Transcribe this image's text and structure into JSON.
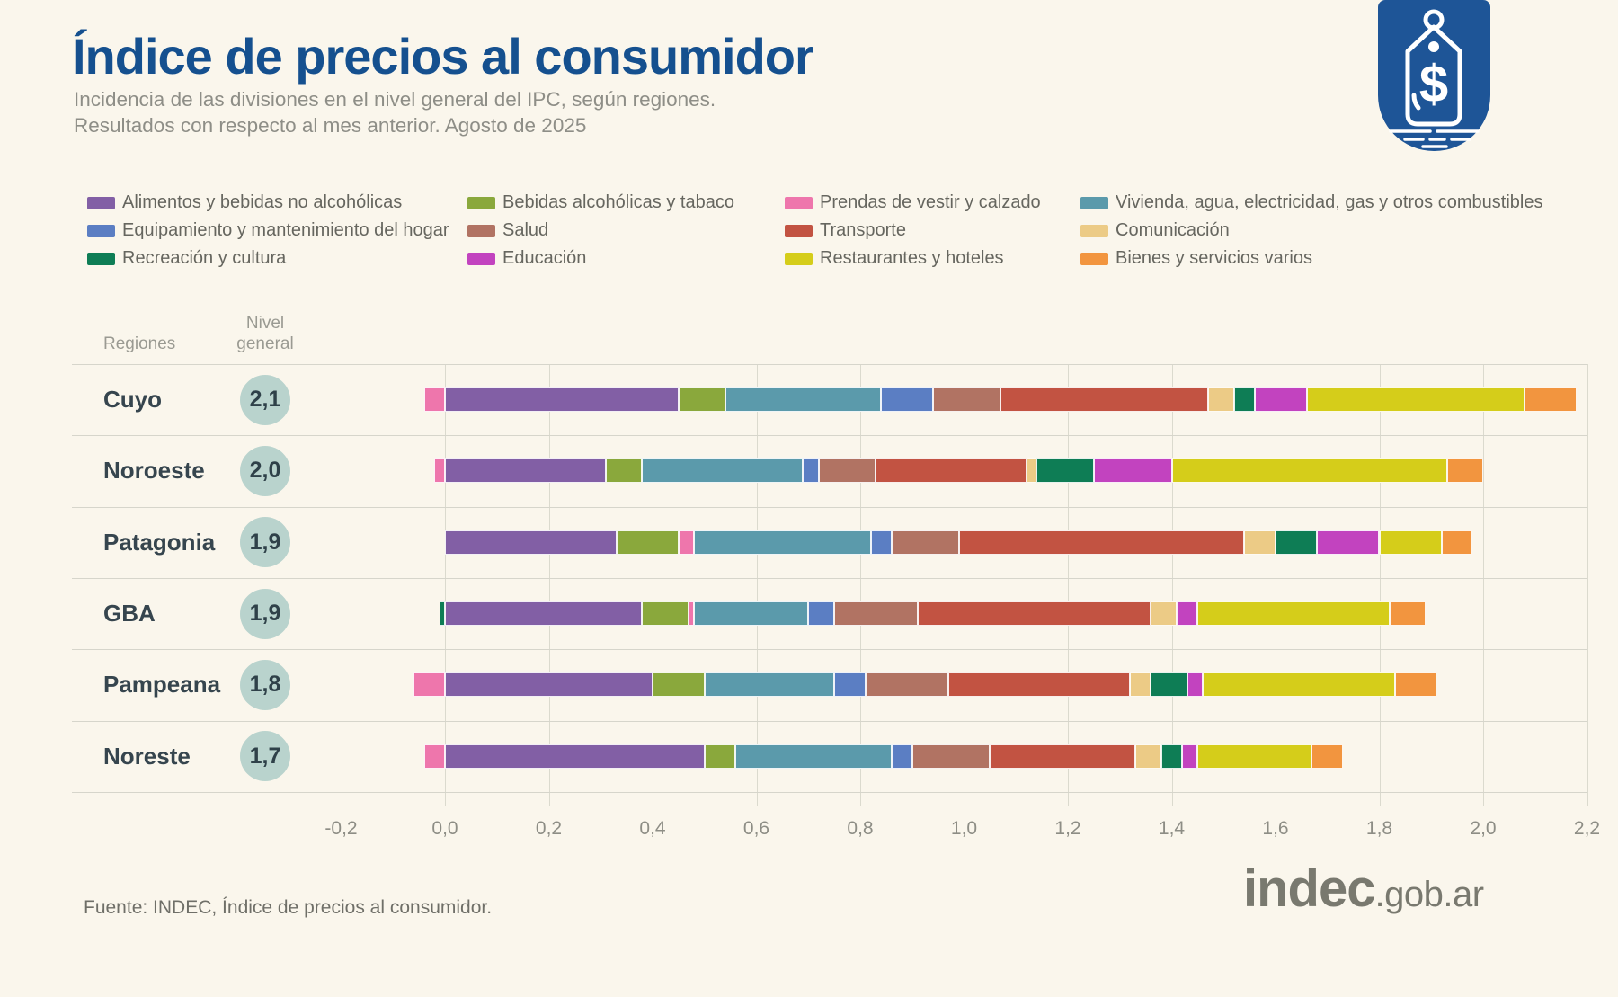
{
  "header": {
    "title": "Índice de precios al consumidor",
    "subtitle_line1": "Incidencia de las divisiones en el nivel general del IPC, según regiones.",
    "subtitle_line2": "Resultados con respecto al mes anterior. Agosto de 2025"
  },
  "brand": {
    "icon": "price-tag-icon",
    "badge_color": "#1e5597",
    "title_color": "#15508f"
  },
  "table_headers": {
    "regions": "Regiones",
    "level_line1": "Nivel",
    "level_line2": "general"
  },
  "chart_data": {
    "type": "bar",
    "subtype": "horizontal-stacked",
    "unit": "incidencia en puntos porcentuales",
    "xlim": [
      -0.2,
      2.2
    ],
    "tick_step": 0.2,
    "ticks": [
      "-0,2",
      "0,0",
      "0,2",
      "0,4",
      "0,6",
      "0,8",
      "1,0",
      "1,2",
      "1,4",
      "1,6",
      "1,8",
      "2,0",
      "2,2"
    ],
    "grid": true,
    "legend_position": "top",
    "categories": [
      {
        "name": "Alimentos y bebidas no alcohólicas",
        "color": "#825fa5"
      },
      {
        "name": "Bebidas alcohólicas y tabaco",
        "color": "#8aa83c"
      },
      {
        "name": "Prendas de vestir y calzado",
        "color": "#ee76ac"
      },
      {
        "name": "Vivienda, agua, electricidad, gas y otros combustibles",
        "color": "#5b9aab"
      },
      {
        "name": "Equipamiento y mantenimiento del hogar",
        "color": "#5b7ec3"
      },
      {
        "name": "Salud",
        "color": "#b17363"
      },
      {
        "name": "Transporte",
        "color": "#c25342"
      },
      {
        "name": "Comunicación",
        "color": "#eccb86"
      },
      {
        "name": "Recreación y cultura",
        "color": "#0e7d55"
      },
      {
        "name": "Educación",
        "color": "#c243bf"
      },
      {
        "name": "Restaurantes y hoteles",
        "color": "#d5cd1a"
      },
      {
        "name": "Bienes y servicios varios",
        "color": "#f2953f"
      }
    ],
    "rows": [
      {
        "region": "Cuyo",
        "nivel_general": "2,1",
        "values": [
          0.45,
          0.09,
          -0.04,
          0.3,
          0.1,
          0.13,
          0.4,
          0.05,
          0.04,
          0.1,
          0.42,
          0.1
        ]
      },
      {
        "region": "Noroeste",
        "nivel_general": "2,0",
        "values": [
          0.31,
          0.07,
          -0.02,
          0.31,
          0.03,
          0.11,
          0.29,
          0.02,
          0.11,
          0.15,
          0.53,
          0.07
        ]
      },
      {
        "region": "Patagonia",
        "nivel_general": "1,9",
        "values": [
          0.33,
          0.12,
          0.03,
          0.34,
          0.04,
          0.13,
          0.55,
          0.06,
          0.08,
          0.12,
          0.12,
          0.06
        ]
      },
      {
        "region": "GBA",
        "nivel_general": "1,9",
        "values": [
          0.38,
          0.09,
          0.01,
          0.22,
          0.05,
          0.16,
          0.45,
          0.05,
          -0.01,
          0.04,
          0.37,
          0.07
        ]
      },
      {
        "region": "Pampeana",
        "nivel_general": "1,8",
        "values": [
          0.4,
          0.1,
          -0.06,
          0.25,
          0.06,
          0.16,
          0.35,
          0.04,
          0.07,
          0.03,
          0.37,
          0.08
        ]
      },
      {
        "region": "Noreste",
        "nivel_general": "1,7",
        "values": [
          0.5,
          0.06,
          -0.04,
          0.3,
          0.04,
          0.15,
          0.28,
          0.05,
          0.04,
          0.03,
          0.22,
          0.06
        ]
      }
    ]
  },
  "footer": {
    "source": "Fuente: INDEC, Índice de precios al consumidor.",
    "logo_main": "indec",
    "logo_suffix": ".gob.ar"
  }
}
